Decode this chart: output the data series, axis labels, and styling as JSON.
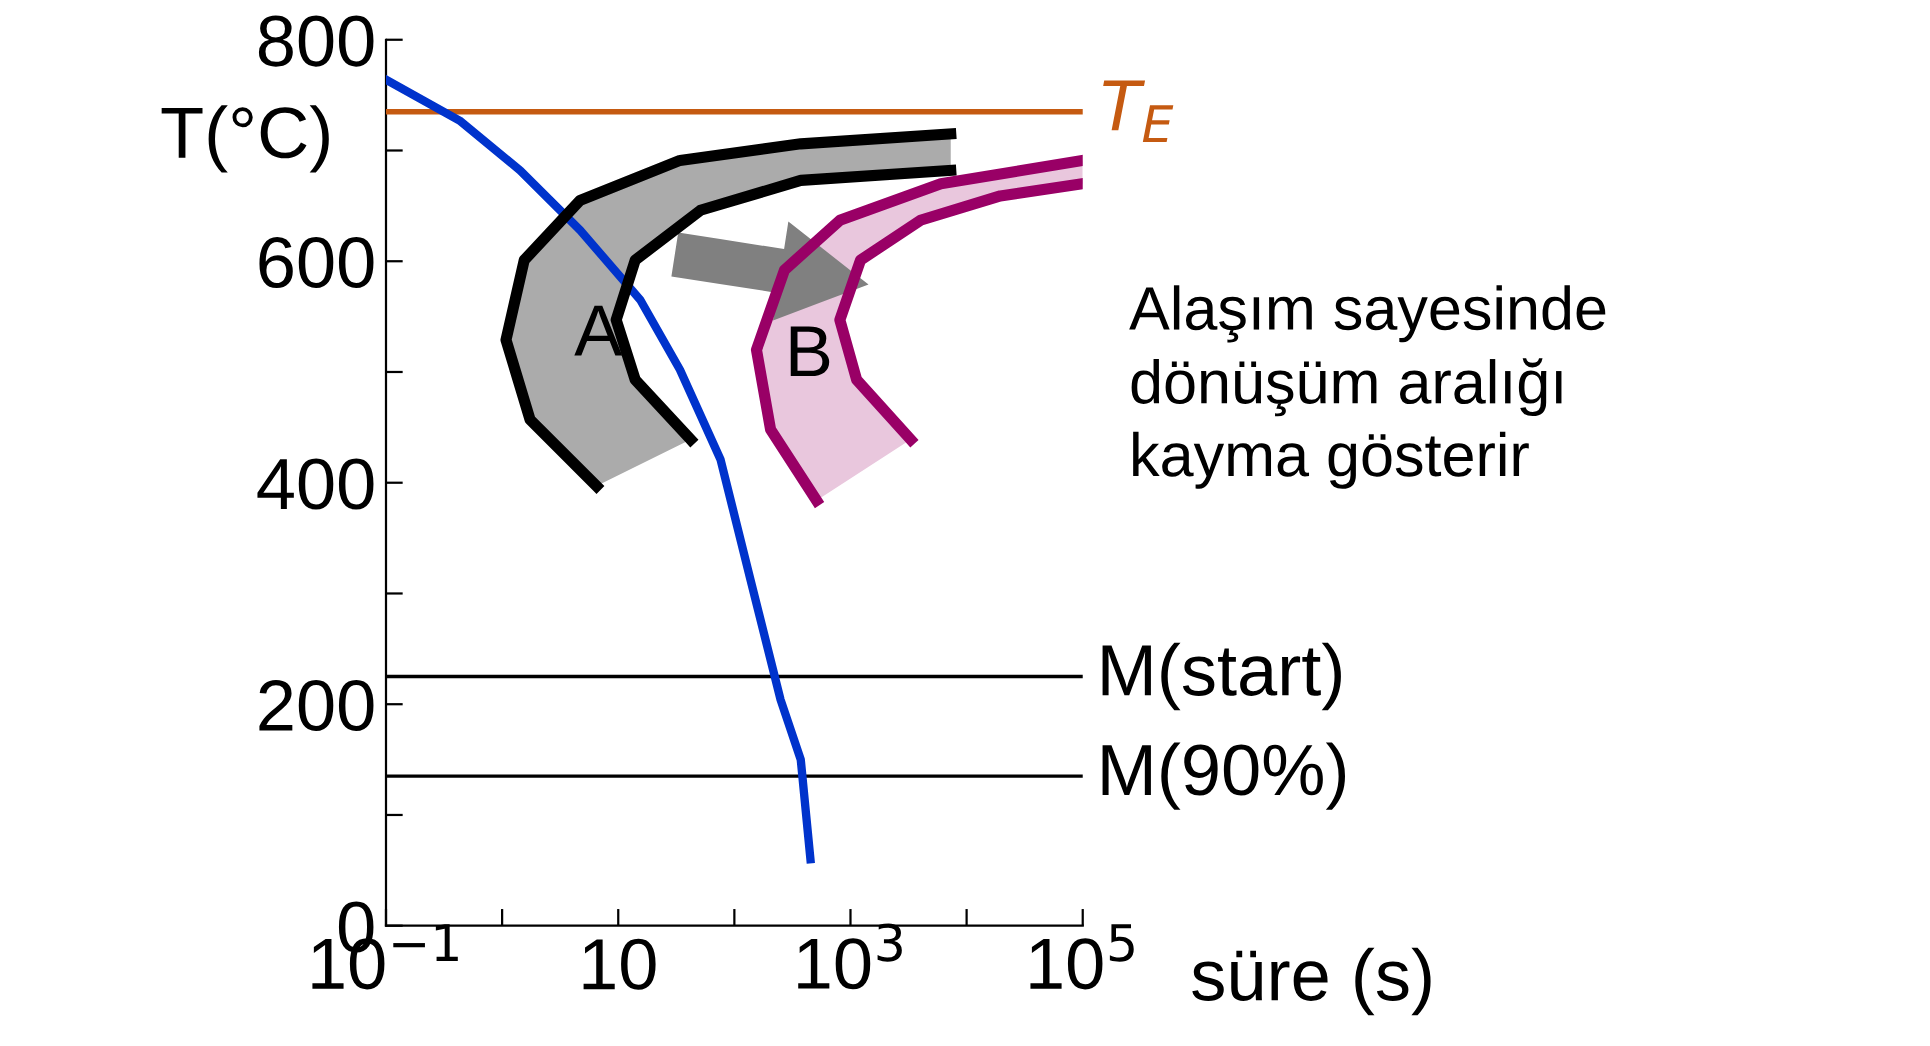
{
  "chart_data": {
    "type": "line",
    "ylabel": "T(°C)",
    "xlabel": "süre (s)",
    "log": "x",
    "xlim": [
      0.1,
      100000
    ],
    "xticks": [
      {
        "value": 0.1,
        "label": "10$^{−1}$"
      },
      {
        "value": 1,
        "label": null
      },
      10,
      {
        "value": 100,
        "label": null
      },
      {
        "value": 1000,
        "label": "10$^{3}$"
      },
      {
        "value": 10000,
        "label": null
      },
      {
        "value": 100000,
        "label": "10$^{5}$"
      }
    ],
    "ylim": [
      0,
      800
    ],
    "yticks": [
      0,
      {
        "value": 100,
        "label": null
      },
      200,
      {
        "value": 300,
        "label": null
      },
      400,
      {
        "value": 500,
        "label": null
      },
      600,
      {
        "value": 700,
        "label": null
      },
      800
    ],
    "grid": false,
    "legend": false,
    "marker": "none",
    "series": [
      {
        "color": "#0033cc",
        "x": [
          0.1,
          0.43,
          1.43,
          4.7,
          15.5,
          34,
          76,
          138,
          250,
          373,
          452
        ],
        "values": [
          764,
          727,
          682,
          628,
          565,
          502,
          421,
          312,
          204,
          150,
          60
        ]
      },
      {
        "color": "#000000",
        "x": [
          6.5,
          1.74,
          1.08,
          1.55,
          4.7,
          34,
          373,
          7300
        ],
        "values": [
          397,
          457,
          529,
          601,
          655,
          691,
          706,
          715
        ]
      },
      {
        "color": "#000000",
        "x": [
          42,
          14,
          9.6,
          14,
          51,
          373,
          7300
        ],
        "values": [
          439,
          493,
          547,
          601,
          646,
          673,
          682
        ]
      },
      {
        "color": "#990066",
        "x": [
          510,
          205,
          155,
          270,
          810,
          6000,
          100000
        ],
        "values": [
          384,
          448,
          520,
          592,
          637,
          670,
          691
        ]
      },
      {
        "color": "#990066",
        "x": [
          3300,
          1130,
          810,
          1220,
          4000,
          19500,
          100000
        ],
        "values": [
          439,
          493,
          547,
          601,
          637,
          659,
          670
        ]
      }
    ],
    "ref_lines": [
      {
        "axis": "y",
        "value": 735,
        "label": "T$_{E}$",
        "color": "#c55a11"
      },
      {
        "axis": "y",
        "value": 225,
        "label": "M(start)",
        "color": "#000000"
      },
      {
        "axis": "y",
        "value": 135,
        "label": "M(90%)",
        "color": "#000000"
      }
    ],
    "annotations": [
      "A",
      "B",
      "Alaşım sayesinde\ndönüşüm aralığı\nkayma gösterir"
    ]
  }
}
